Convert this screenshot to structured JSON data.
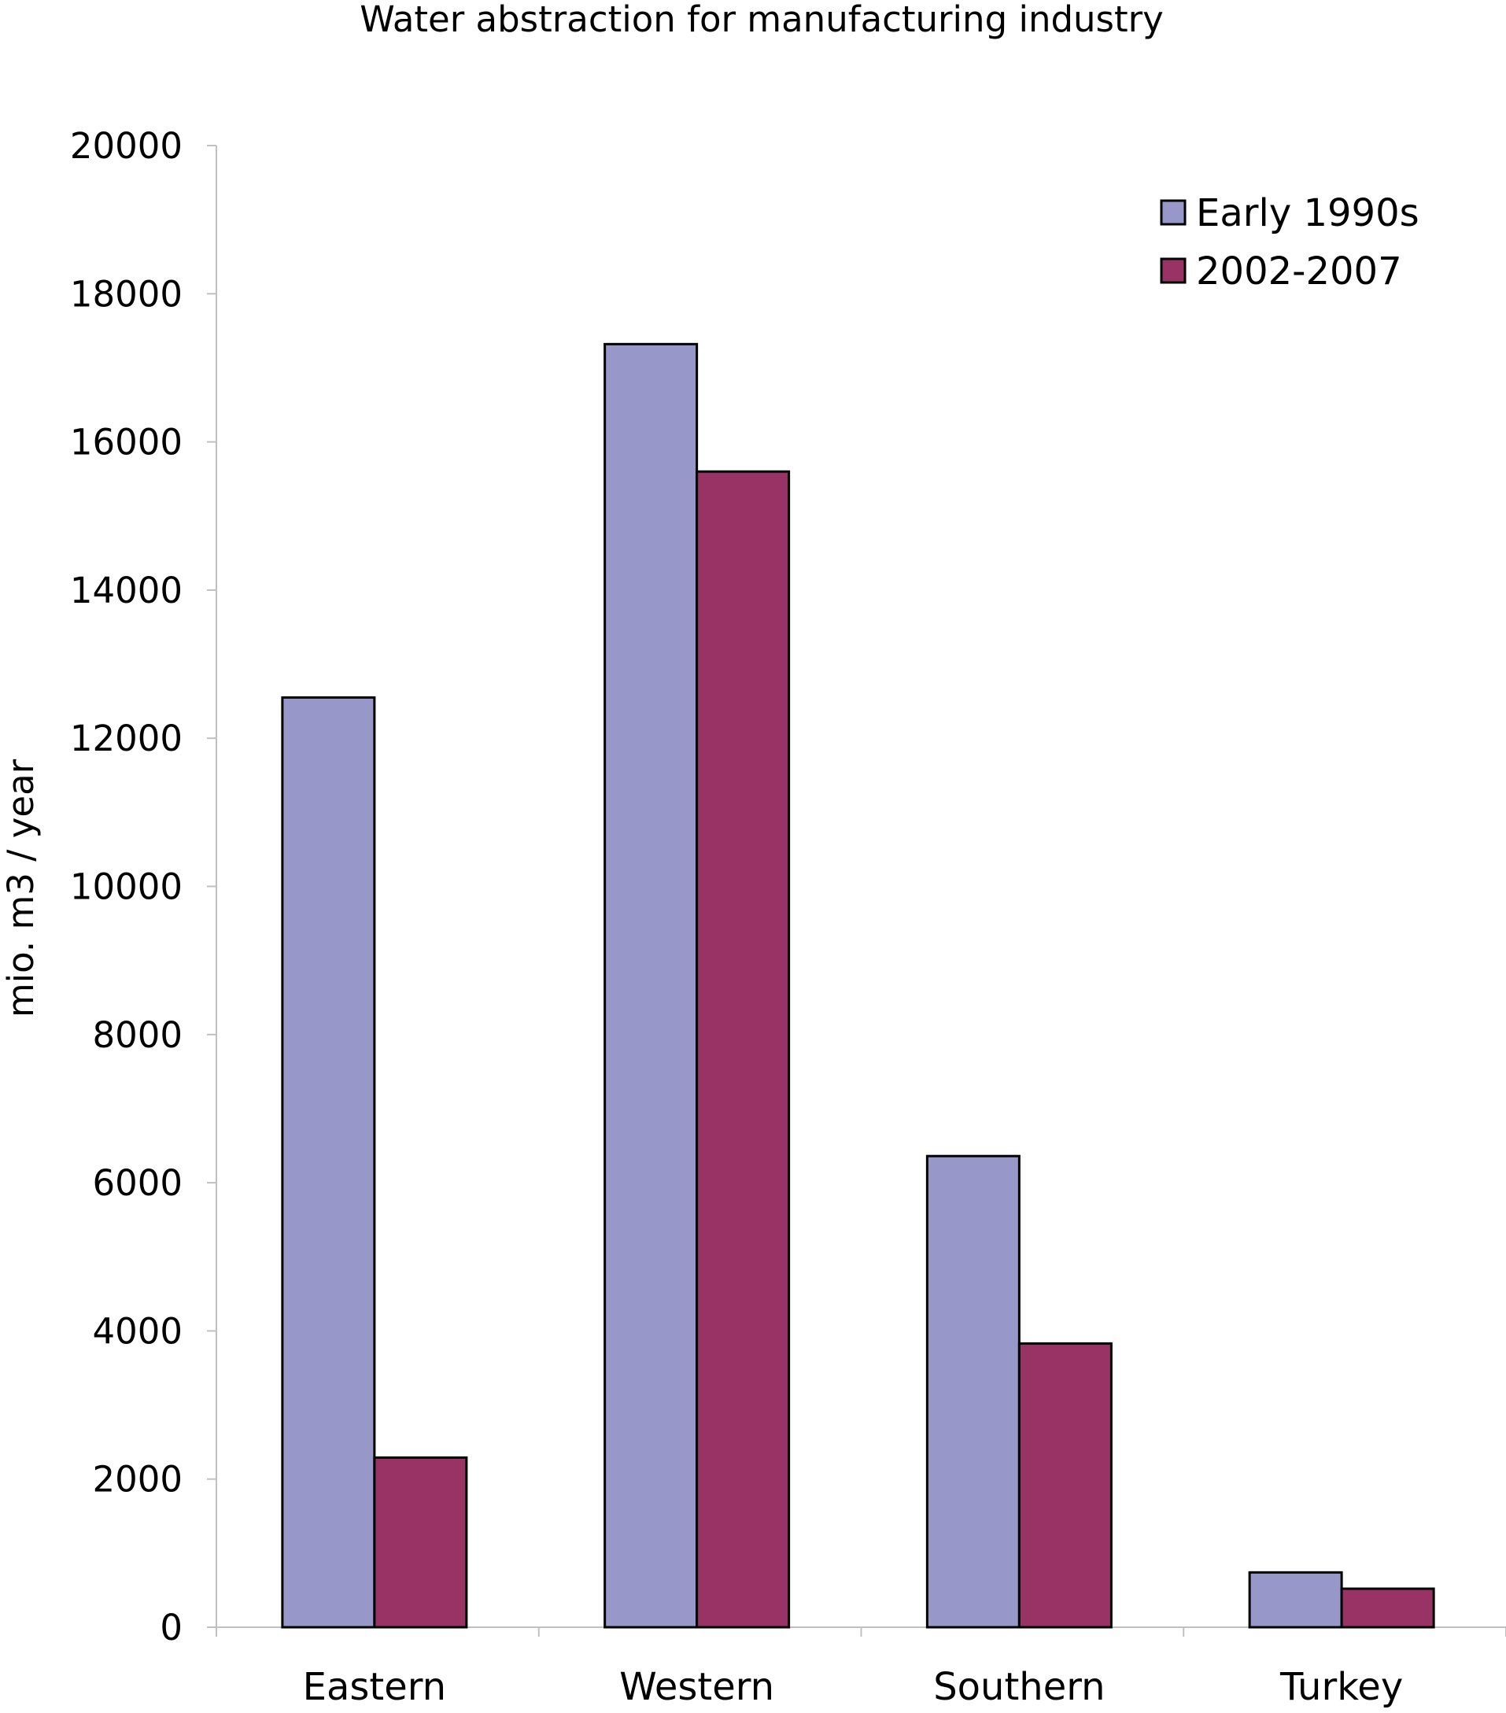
{
  "chart_data": {
    "type": "bar",
    "title": "Water abstraction for manufacturing industry",
    "xlabel": "",
    "ylabel": "mio. m3 / year",
    "categories": [
      "Eastern",
      "Western",
      "Southern",
      "Turkey"
    ],
    "series": [
      {
        "name": "Early 1990s",
        "values": [
          12550,
          17320,
          6360,
          740
        ],
        "color": "#9797c9"
      },
      {
        "name": "2002-2007",
        "values": [
          2290,
          15600,
          3830,
          520
        ],
        "color": "#993366"
      }
    ],
    "ylim": [
      0,
      20000
    ],
    "yticks": [
      0,
      2000,
      4000,
      6000,
      8000,
      10000,
      12000,
      14000,
      16000,
      18000,
      20000
    ],
    "grid": false,
    "legend_position": "top-right"
  },
  "colors": {
    "axis": "#c0c0c0",
    "bar_outline": "#000000",
    "background": "#ffffff"
  }
}
